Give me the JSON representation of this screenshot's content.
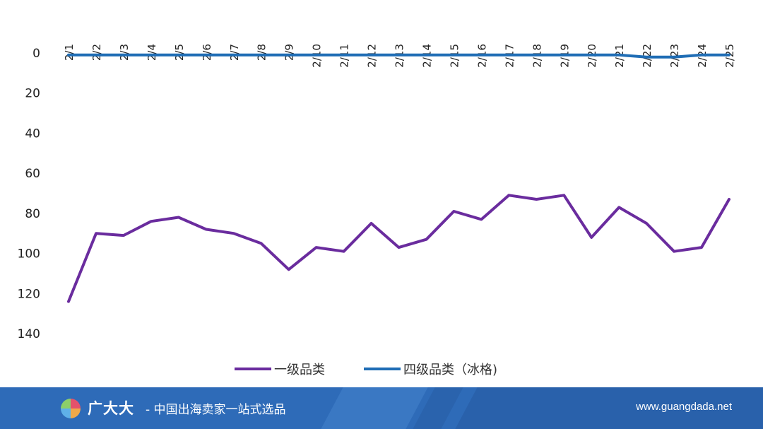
{
  "chart_data": {
    "type": "line",
    "title": "",
    "xlabel": "",
    "ylabel": "",
    "y_axis_inverted": true,
    "ylim": [
      0,
      140
    ],
    "y_ticks": [
      "0",
      "20",
      "40",
      "60",
      "80",
      "100",
      "120",
      "140"
    ],
    "categories": [
      "2/1",
      "2/2",
      "2/3",
      "2/4",
      "2/5",
      "2/6",
      "2/7",
      "2/8",
      "2/9",
      "2/10",
      "2/11",
      "2/12",
      "2/13",
      "2/14",
      "2/15",
      "2/16",
      "2/17",
      "2/18",
      "2/19",
      "2/20",
      "2/21",
      "2/22",
      "2/23",
      "2/24",
      "2/25"
    ],
    "x_tick_position": "top",
    "x_tick_rotation": "vertical",
    "grid": false,
    "legend_position": "bottom",
    "series": [
      {
        "name": "一级品类",
        "color": "#6a2c9e",
        "values": [
          124,
          90,
          91,
          84,
          82,
          88,
          90,
          95,
          108,
          97,
          99,
          85,
          97,
          93,
          79,
          83,
          71,
          73,
          71,
          92,
          77,
          85,
          99,
          97,
          73
        ]
      },
      {
        "name": "四级品类（冰格)",
        "color": "#1f6db5",
        "values": [
          1,
          1,
          1,
          1,
          1,
          1,
          1,
          1,
          1,
          1,
          1,
          1,
          1,
          1,
          1,
          1,
          1,
          1,
          1,
          1,
          1,
          2,
          2,
          1,
          1
        ]
      }
    ]
  },
  "footer": {
    "brand_name": "广大大",
    "slogan": "- 中国出海卖家一站式选品",
    "url": "www.guangdada.net",
    "background_color": "#2e6bb8",
    "logo_icon": "pie-chart-logo-icon"
  }
}
